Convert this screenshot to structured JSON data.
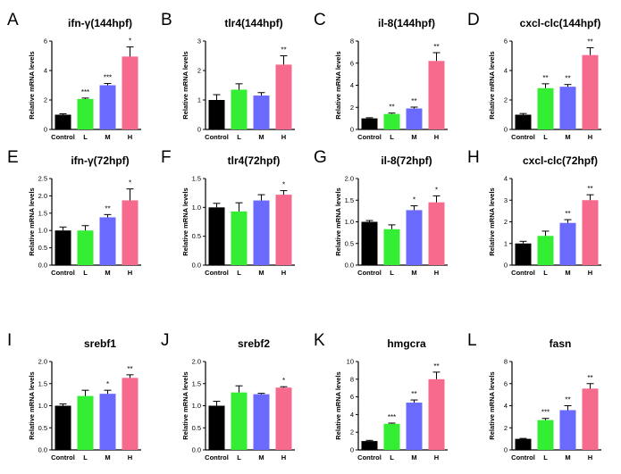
{
  "figure": {
    "categories": [
      "Control",
      "L",
      "M",
      "H"
    ],
    "ylabel": "Relative mRNA levels",
    "colors": [
      "#000000",
      "#33ee33",
      "#6a6aff",
      "#f56a8d"
    ]
  },
  "chart_data": [
    {
      "type": "bar",
      "letter": "A",
      "title": "ifn-γ(144hpf)",
      "ylim": [
        0,
        6
      ],
      "yticks": [
        0,
        2,
        4,
        6
      ],
      "tick_labels": [
        "0",
        "2",
        "4",
        "6"
      ],
      "values": [
        1.0,
        2.07,
        3.0,
        4.95
      ],
      "errors": [
        0.06,
        0.06,
        0.12,
        0.65
      ],
      "significance": [
        "",
        "***",
        "***",
        "*"
      ]
    },
    {
      "type": "bar",
      "letter": "B",
      "title": "tlr4(144hpf)",
      "ylim": [
        0,
        3
      ],
      "yticks": [
        0,
        1,
        2,
        3
      ],
      "tick_labels": [
        "0",
        "1",
        "2",
        "3"
      ],
      "values": [
        1.0,
        1.35,
        1.15,
        2.2
      ],
      "errors": [
        0.18,
        0.2,
        0.1,
        0.3
      ],
      "significance": [
        "",
        "",
        "",
        "**"
      ]
    },
    {
      "type": "bar",
      "letter": "C",
      "title": "il-8(144hpf)",
      "ylim": [
        0,
        8
      ],
      "yticks": [
        0,
        2,
        4,
        6,
        8
      ],
      "tick_labels": [
        "0",
        "2",
        "4",
        "6",
        "8"
      ],
      "values": [
        1.0,
        1.4,
        1.9,
        6.2
      ],
      "errors": [
        0.06,
        0.08,
        0.12,
        0.75
      ],
      "significance": [
        "",
        "**",
        "**",
        "**"
      ]
    },
    {
      "type": "bar",
      "letter": "D",
      "title": "cxcl-clc(144hpf)",
      "ylim": [
        0,
        6
      ],
      "yticks": [
        0,
        2,
        4,
        6
      ],
      "tick_labels": [
        "0",
        "2",
        "4",
        "6"
      ],
      "values": [
        1.0,
        2.8,
        2.9,
        5.05
      ],
      "errors": [
        0.08,
        0.3,
        0.15,
        0.5
      ],
      "significance": [
        "",
        "**",
        "**",
        "**"
      ]
    },
    {
      "type": "bar",
      "letter": "E",
      "title": "ifn-γ(72hpf)",
      "ylim": [
        0,
        2.5
      ],
      "yticks": [
        0,
        0.5,
        1,
        1.5,
        2,
        2.5
      ],
      "tick_labels": [
        "0.0",
        "0.5",
        "1.0",
        "1.5",
        "2.0",
        "2.5"
      ],
      "values": [
        1.0,
        1.0,
        1.38,
        1.87
      ],
      "errors": [
        0.1,
        0.14,
        0.08,
        0.33
      ],
      "significance": [
        "",
        "",
        "**",
        "*"
      ]
    },
    {
      "type": "bar",
      "letter": "F",
      "title": "tlr4(72hpf)",
      "ylim": [
        0,
        1.5
      ],
      "yticks": [
        0,
        0.5,
        1,
        1.5
      ],
      "tick_labels": [
        "0.0",
        "0.5",
        "1.0",
        "1.5"
      ],
      "values": [
        1.0,
        0.93,
        1.12,
        1.22
      ],
      "errors": [
        0.07,
        0.15,
        0.1,
        0.07
      ],
      "significance": [
        "",
        "",
        "",
        "*"
      ]
    },
    {
      "type": "bar",
      "letter": "G",
      "title": "il-8(72hpf)",
      "ylim": [
        0,
        2
      ],
      "yticks": [
        0,
        0.5,
        1,
        1.5,
        2
      ],
      "tick_labels": [
        "0.0",
        "0.5",
        "1.0",
        "1.5",
        "2.0"
      ],
      "values": [
        1.0,
        0.83,
        1.27,
        1.45
      ],
      "errors": [
        0.03,
        0.1,
        0.1,
        0.15
      ],
      "significance": [
        "",
        "",
        "*",
        "*"
      ]
    },
    {
      "type": "bar",
      "letter": "H",
      "title": "cxcl-clc(72hpf)",
      "ylim": [
        0,
        4
      ],
      "yticks": [
        0,
        1,
        2,
        3,
        4
      ],
      "tick_labels": [
        "0",
        "1",
        "2",
        "3",
        "4"
      ],
      "values": [
        1.0,
        1.35,
        1.95,
        3.0
      ],
      "errors": [
        0.1,
        0.22,
        0.15,
        0.25
      ],
      "significance": [
        "",
        "",
        "**",
        "**"
      ]
    },
    {
      "type": "bar",
      "letter": "I",
      "title": "srebf1",
      "ylim": [
        0,
        2
      ],
      "yticks": [
        0,
        0.5,
        1,
        1.5,
        2
      ],
      "tick_labels": [
        "0.0",
        "0.5",
        "1.0",
        "1.5",
        "2.0"
      ],
      "values": [
        1.0,
        1.22,
        1.27,
        1.63
      ],
      "errors": [
        0.04,
        0.13,
        0.08,
        0.07
      ],
      "significance": [
        "",
        "",
        "*",
        "**"
      ]
    },
    {
      "type": "bar",
      "letter": "J",
      "title": "srebf2",
      "ylim": [
        0,
        2
      ],
      "yticks": [
        0,
        0.5,
        1,
        1.5,
        2
      ],
      "tick_labels": [
        "0.0",
        "0.5",
        "1.0",
        "1.5",
        "2.0"
      ],
      "values": [
        1.0,
        1.3,
        1.26,
        1.41
      ],
      "errors": [
        0.1,
        0.15,
        0.02,
        0.02
      ],
      "significance": [
        "",
        "",
        "",
        "*"
      ]
    },
    {
      "type": "bar",
      "letter": "K",
      "title": "hmgcra",
      "ylim": [
        0,
        10
      ],
      "yticks": [
        0,
        2,
        4,
        6,
        8,
        10
      ],
      "tick_labels": [
        "0",
        "2",
        "4",
        "6",
        "8",
        "10"
      ],
      "values": [
        1.0,
        2.95,
        5.35,
        8.0
      ],
      "errors": [
        0.08,
        0.08,
        0.3,
        0.8
      ],
      "significance": [
        "",
        "***",
        "**",
        "**"
      ]
    },
    {
      "type": "bar",
      "letter": "L",
      "title": "fasn",
      "ylim": [
        0,
        8
      ],
      "yticks": [
        0,
        2,
        4,
        6,
        8
      ],
      "tick_labels": [
        "0",
        "2",
        "4",
        "6",
        "8"
      ],
      "values": [
        1.0,
        2.7,
        3.6,
        5.55
      ],
      "errors": [
        0.04,
        0.15,
        0.4,
        0.45
      ],
      "significance": [
        "",
        "***",
        "**",
        "**"
      ]
    }
  ]
}
